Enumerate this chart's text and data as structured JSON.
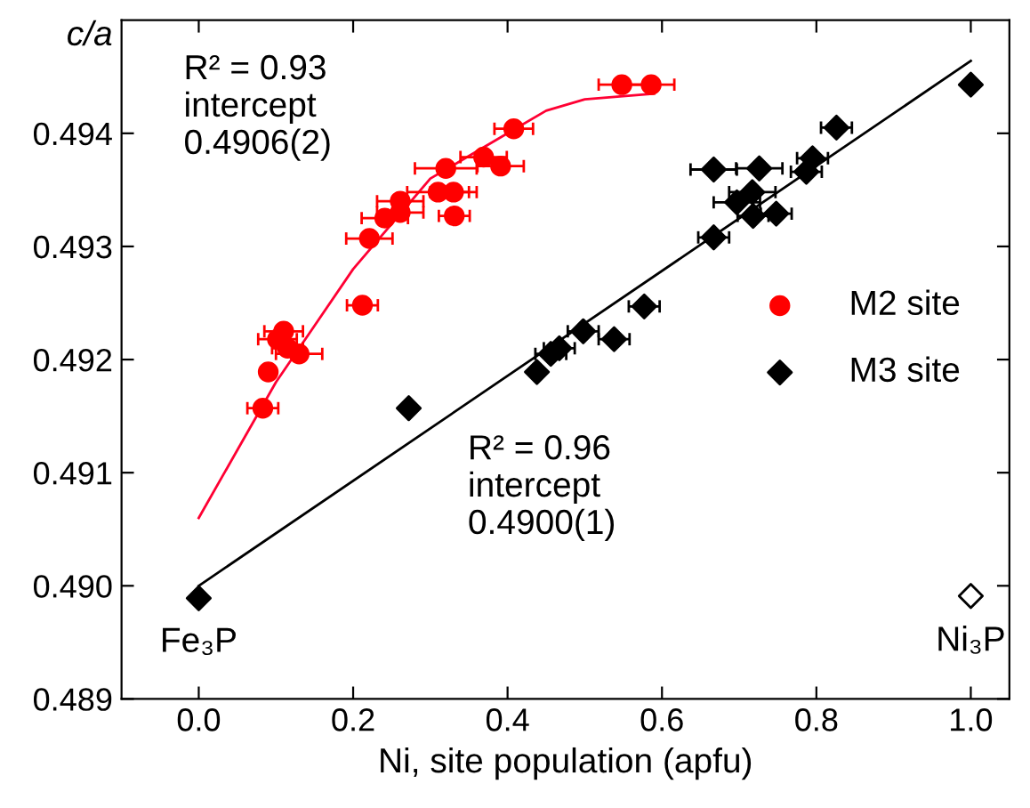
{
  "chart_data": {
    "type": "scatter",
    "xlabel": "Ni, site population (apfu)",
    "ylabel": "c/a",
    "xlim": [
      -0.1,
      1.05
    ],
    "xticks": [
      {
        "value": 0.0,
        "label": "0.0"
      },
      {
        "value": 0.2,
        "label": "0.2"
      },
      {
        "value": 0.4,
        "label": "0.4"
      },
      {
        "value": 0.6,
        "label": "0.6"
      },
      {
        "value": 0.8,
        "label": "0.8"
      },
      {
        "value": 1.0,
        "label": "1.0"
      }
    ],
    "ylim": [
      0.489,
      0.495
    ],
    "yticks": [
      0.489,
      {
        "value": 0.49,
        "label": "0.490"
      },
      0.491,
      0.492,
      0.493,
      0.494
    ],
    "grid": false,
    "legend": "right",
    "series": [
      {
        "name": "M2 site",
        "marker": "circle",
        "color": "#ff0000",
        "x": [
          0.548,
          0.586,
          0.408,
          0.32,
          0.369,
          0.391,
          0.31,
          0.33,
          0.331,
          0.261,
          0.241,
          0.261,
          0.221,
          0.212,
          0.11,
          0.102,
          0.115,
          0.13,
          0.09,
          0.083
        ],
        "values": [
          0.49443,
          0.49443,
          0.49404,
          0.49369,
          0.49379,
          0.49371,
          0.49348,
          0.49348,
          0.49327,
          0.4934,
          0.49325,
          0.4933,
          0.49307,
          0.49248,
          0.49225,
          0.49218,
          0.4921,
          0.49205,
          0.49189,
          0.49157
        ],
        "xerrors": [
          0.03,
          0.03,
          0.025,
          0.04,
          0.03,
          0.03,
          0.04,
          0.03,
          0.02,
          0.03,
          0.03,
          0.03,
          0.03,
          0.02,
          0.025,
          0.025,
          0.02,
          0.03,
          null,
          0.02
        ]
      },
      {
        "name": "M3 site",
        "marker": "diamond",
        "color": "#000000",
        "x": [
          1.0,
          0.826,
          0.795,
          0.787,
          0.667,
          0.726,
          0.717,
          0.697,
          0.718,
          0.748,
          0.667,
          0.577,
          0.498,
          0.538,
          0.467,
          0.456,
          0.438,
          0.272,
          0.0
        ],
        "values": [
          0.49443,
          0.49405,
          0.49378,
          0.49366,
          0.49368,
          0.49369,
          0.49348,
          0.49339,
          0.49327,
          0.49329,
          0.49308,
          0.49247,
          0.49225,
          0.49218,
          0.4921,
          0.49205,
          0.49189,
          0.49157,
          0.48989
        ],
        "xerrors": [
          null,
          0.02,
          0.02,
          0.02,
          0.03,
          0.03,
          0.03,
          0.03,
          0.02,
          0.02,
          0.02,
          0.02,
          0.02,
          0.02,
          0.02,
          0.02,
          null,
          null,
          null
        ]
      },
      {
        "marker": "diamond",
        "color": "#ffffff",
        "x": [
          1.0
        ],
        "values": [
          0.48991
        ]
      },
      {
        "type": "line",
        "color": "#ff0033",
        "x": [
          0.0,
          0.05,
          0.1,
          0.15,
          0.2,
          0.25,
          0.3,
          0.35,
          0.4,
          0.45,
          0.5,
          0.59
        ],
        "values": [
          0.4906,
          0.4912,
          0.4918,
          0.4923,
          0.4928,
          0.4932,
          0.4936,
          0.4938,
          0.494,
          0.4942,
          0.4943,
          0.49435
        ]
      },
      {
        "type": "line",
        "color": "#000000",
        "x": [
          0.0,
          1.0
        ],
        "values": [
          0.49,
          0.49464
        ]
      }
    ],
    "annotations": [
      "R² = 0.93\nintercept\n0.4906(2)",
      "R² = 0.96\nintercept\n0.4900(1)",
      {
        "text": "Fe₃P",
        "x": 0.0,
        "y": 0.4899
      },
      {
        "text": "Ni₃P",
        "x": 1.0,
        "y": 0.48991
      }
    ]
  }
}
